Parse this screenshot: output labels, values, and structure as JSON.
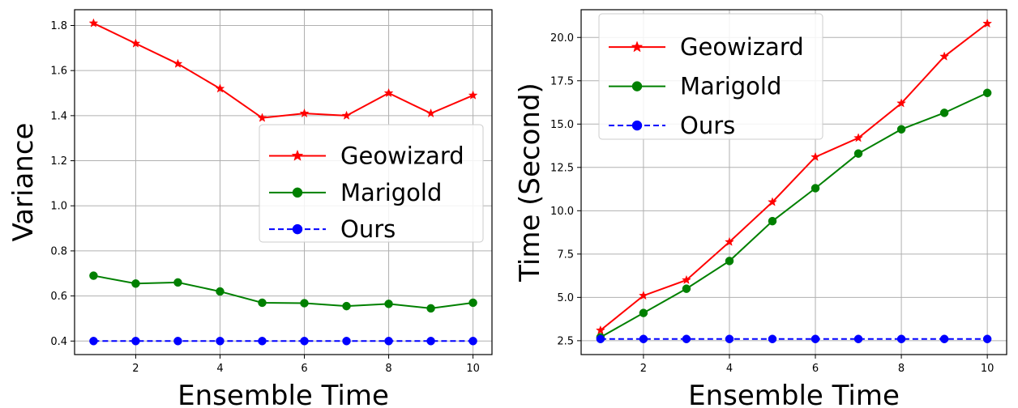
{
  "chart_data": [
    {
      "type": "line",
      "xlabel": "Ensemble Time",
      "ylabel": "Variance",
      "x": [
        1,
        2,
        3,
        4,
        5,
        6,
        7,
        8,
        9,
        10
      ],
      "xlim": [
        0.55,
        10.45
      ],
      "ylim": [
        0.34,
        1.87
      ],
      "xticks": [
        2,
        4,
        6,
        8,
        10
      ],
      "xtick_labels": [
        "2",
        "4",
        "6",
        "8",
        "10"
      ],
      "yticks": [
        0.4,
        0.6,
        0.8,
        1.0,
        1.2,
        1.4,
        1.6,
        1.8
      ],
      "ytick_labels": [
        "0.4",
        "0.6",
        "0.8",
        "1.0",
        "1.2",
        "1.4",
        "1.6",
        "1.8"
      ],
      "grid": true,
      "legend_position": "center-right",
      "series": [
        {
          "name": "Geowizard",
          "color": "#ff0000",
          "marker": "star",
          "dash": "solid",
          "values": [
            1.81,
            1.72,
            1.63,
            1.52,
            1.39,
            1.41,
            1.4,
            1.5,
            1.41,
            1.49
          ]
        },
        {
          "name": "Marigold",
          "color": "#008000",
          "marker": "circle",
          "dash": "solid",
          "values": [
            0.69,
            0.655,
            0.66,
            0.62,
            0.57,
            0.568,
            0.555,
            0.565,
            0.545,
            0.57
          ]
        },
        {
          "name": "Ours",
          "color": "#0000ff",
          "marker": "circle",
          "dash": "dashed",
          "values": [
            0.4,
            0.4,
            0.4,
            0.4,
            0.4,
            0.4,
            0.4,
            0.4,
            0.4,
            0.4
          ]
        }
      ]
    },
    {
      "type": "line",
      "xlabel": "Ensemble Time",
      "ylabel": "Time (Second)",
      "x": [
        1,
        2,
        3,
        4,
        5,
        6,
        7,
        8,
        9,
        10
      ],
      "xlim": [
        0.55,
        10.45
      ],
      "ylim": [
        1.7,
        21.6
      ],
      "xticks": [
        2,
        4,
        6,
        8,
        10
      ],
      "xtick_labels": [
        "2",
        "4",
        "6",
        "8",
        "10"
      ],
      "yticks": [
        2.5,
        5.0,
        7.5,
        10.0,
        12.5,
        15.0,
        17.5,
        20.0
      ],
      "ytick_labels": [
        "2.5",
        "5.0",
        "7.5",
        "10.0",
        "12.5",
        "15.0",
        "17.5",
        "20.0"
      ],
      "grid": true,
      "legend_position": "top-left",
      "series": [
        {
          "name": "Geowizard",
          "color": "#ff0000",
          "marker": "star",
          "dash": "solid",
          "values": [
            3.1,
            5.1,
            6.0,
            8.2,
            10.5,
            13.1,
            14.2,
            16.2,
            18.9,
            20.8
          ]
        },
        {
          "name": "Marigold",
          "color": "#008000",
          "marker": "circle",
          "dash": "solid",
          "values": [
            2.7,
            4.1,
            5.5,
            7.1,
            9.4,
            11.3,
            13.3,
            14.7,
            15.65,
            16.8
          ]
        },
        {
          "name": "Ours",
          "color": "#0000ff",
          "marker": "circle",
          "dash": "dashed",
          "values": [
            2.6,
            2.6,
            2.6,
            2.6,
            2.6,
            2.6,
            2.6,
            2.6,
            2.6,
            2.6
          ]
        }
      ]
    }
  ]
}
